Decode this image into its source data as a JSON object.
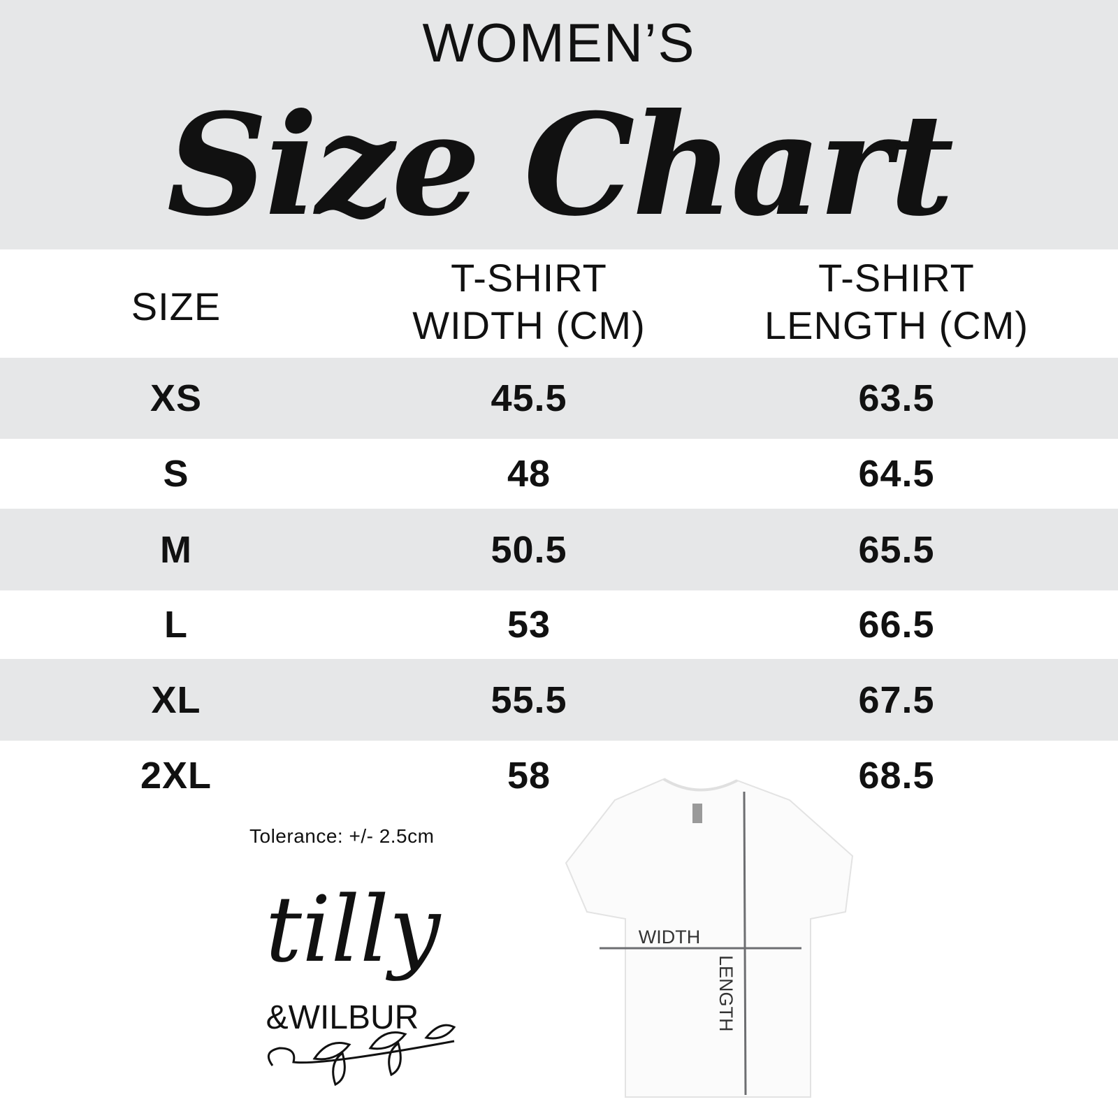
{
  "header": {
    "subtitle": "WOMEN’S",
    "title": "Size Chart"
  },
  "table": {
    "columns": [
      "SIZE",
      "T-SHIRT\nWIDTH (CM)",
      "T-SHIRT\nLENGTH (CM)"
    ],
    "column_lines": [
      [
        "SIZE"
      ],
      [
        "T-SHIRT",
        "WIDTH (CM)"
      ],
      [
        "T-SHIRT",
        "LENGTH (CM)"
      ]
    ],
    "rows": [
      [
        "XS",
        "45.5",
        "63.5"
      ],
      [
        "S",
        "48",
        "64.5"
      ],
      [
        "M",
        "50.5",
        "65.5"
      ],
      [
        "L",
        "53",
        "66.5"
      ],
      [
        "XL",
        "55.5",
        "67.5"
      ],
      [
        "2XL",
        "58",
        "68.5"
      ]
    ]
  },
  "tolerance": "Tolerance: +/- 2.5cm",
  "logo": {
    "line1": "tilly",
    "line2": "&WILBUR"
  },
  "diagram": {
    "width_label": "WIDTH",
    "length_label": "LENGTH"
  },
  "colors": {
    "band": "#e6e7e8",
    "text": "#111111",
    "measure_line": "#6d6e71"
  }
}
